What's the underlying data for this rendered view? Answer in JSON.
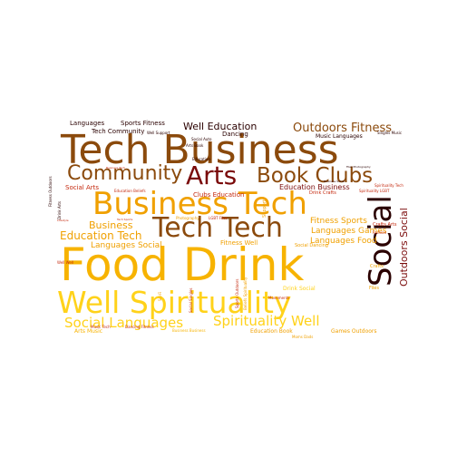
{
  "palette": {
    "brown": "#8b4a0c",
    "orange": "#f0a000",
    "gold": "#ffd21a",
    "maroon": "#7a0a0a",
    "dark": "#2a0000",
    "red": "#c4290e",
    "amber": "#f7b300"
  },
  "words": [
    {
      "text": "Food Drink",
      "color": "amber",
      "rot": 0
    },
    {
      "text": "Tech Business",
      "color": "brown",
      "rot": 0
    },
    {
      "text": "Well Spirituality",
      "color": "gold",
      "rot": 0
    },
    {
      "text": "Business Tech",
      "color": "orange",
      "rot": 0
    },
    {
      "text": "Tech Tech",
      "color": "brown",
      "rot": 0
    },
    {
      "text": "Social",
      "color": "dark",
      "rot": -90
    },
    {
      "text": "Arts",
      "color": "maroon",
      "rot": 0
    },
    {
      "text": "Community",
      "color": "brown",
      "rot": 0
    },
    {
      "text": "Book Clubs",
      "color": "brown",
      "rot": 0
    },
    {
      "text": "Spirituality Well",
      "color": "gold",
      "rot": 0
    },
    {
      "text": "Social Languages",
      "color": "gold",
      "rot": 0
    },
    {
      "text": "Outdoors Fitness",
      "color": "brown",
      "rot": 0
    },
    {
      "text": "Well Education",
      "color": "dark",
      "rot": 0
    },
    {
      "text": "Education Tech",
      "color": "orange",
      "rot": 0
    },
    {
      "text": "Outdoors Social",
      "color": "maroon",
      "rot": -90
    },
    {
      "text": "Business",
      "color": "orange",
      "rot": 0
    },
    {
      "text": "Fitness Sports",
      "color": "orange",
      "rot": 0
    },
    {
      "text": "Languages Games",
      "color": "orange",
      "rot": 0
    },
    {
      "text": "Languages Food",
      "color": "orange",
      "rot": 0
    },
    {
      "text": "Languages Social",
      "color": "orange",
      "rot": 0
    },
    {
      "text": "Education Business",
      "color": "maroon",
      "rot": 0
    },
    {
      "text": "Languages",
      "color": "dark",
      "rot": 0
    },
    {
      "text": "Sports Fitness",
      "color": "dark",
      "rot": 0
    },
    {
      "text": "Social Arts",
      "color": "red",
      "rot": 0
    },
    {
      "text": "Tech Community",
      "color": "dark",
      "rot": 0
    },
    {
      "text": "Dancing",
      "color": "dark",
      "rot": 0
    },
    {
      "text": "Music Languages",
      "color": "dark",
      "rot": 0
    },
    {
      "text": "Clubs Education",
      "color": "red",
      "rot": 0
    },
    {
      "text": "Arts Music",
      "color": "amber",
      "rot": 0
    },
    {
      "text": "Fitness Well",
      "color": "orange",
      "rot": 0
    },
    {
      "text": "Education Book",
      "color": "orange",
      "rot": 0
    },
    {
      "text": "Games Outdoors",
      "color": "orange",
      "rot": 0
    },
    {
      "text": "Drink Social",
      "color": "gold",
      "rot": 0
    },
    {
      "text": "Drink Crafts",
      "color": "red",
      "rot": 0
    },
    {
      "text": "Crafts Arts",
      "color": "red",
      "rot": 0
    },
    {
      "text": "Social Dancing",
      "color": "orange",
      "rot": 0
    },
    {
      "text": "Crafts",
      "color": "orange",
      "rot": 0
    },
    {
      "text": "Files",
      "color": "orange",
      "rot": 0
    },
    {
      "text": "Well Support",
      "color": "dark",
      "rot": 0
    },
    {
      "text": "Arts Book",
      "color": "dark",
      "rot": 0
    },
    {
      "text": "Education",
      "color": "dark",
      "rot": 0
    },
    {
      "text": "Social Auto",
      "color": "dark",
      "rot": 0
    },
    {
      "text": "Singles Music",
      "color": "dark",
      "rot": 0
    },
    {
      "text": "Education Beliefs",
      "color": "red",
      "rot": 0
    },
    {
      "text": "Drink Arts",
      "color": "dark",
      "rot": -90
    },
    {
      "text": "Fitness Outdoors",
      "color": "dark",
      "rot": -90
    },
    {
      "text": "Support",
      "color": "orange",
      "rot": -90
    },
    {
      "text": "Sports Outdoors",
      "color": "red",
      "rot": -90
    },
    {
      "text": "Social Singles",
      "color": "red",
      "rot": -90
    },
    {
      "text": "Movements",
      "color": "red",
      "rot": 0
    },
    {
      "text": "Moms Dads",
      "color": "orange",
      "rot": 0
    },
    {
      "text": "Spirituality LGBT",
      "color": "red",
      "rot": 0
    },
    {
      "text": "Business Social",
      "color": "dark",
      "rot": 0
    },
    {
      "text": "LGBT Files",
      "color": "red",
      "rot": 0
    },
    {
      "text": "Fashion",
      "color": "red",
      "rot": 0
    },
    {
      "text": "Spirituality Tech",
      "color": "red",
      "rot": 0
    },
    {
      "text": "Photography",
      "color": "orange",
      "rot": 0
    },
    {
      "text": "Well Well",
      "color": "red",
      "rot": 0
    },
    {
      "text": "Business Business",
      "color": "amber",
      "rot": 0
    },
    {
      "text": "Dancing Fitness",
      "color": "red",
      "rot": 0
    },
    {
      "text": "Music Tech",
      "color": "red",
      "rot": 0
    },
    {
      "text": "Beliefs Spirituality",
      "color": "orange",
      "rot": -90
    },
    {
      "text": "Sci-Fi",
      "color": "orange",
      "rot": -90
    },
    {
      "text": "Files Photography",
      "color": "dark",
      "rot": 0
    },
    {
      "text": "Business Tech",
      "color": "red",
      "rot": 0
    },
    {
      "text": "Tech Sports",
      "color": "red",
      "rot": 0
    },
    {
      "text": "Lifestyle",
      "color": "red",
      "rot": 0
    }
  ]
}
